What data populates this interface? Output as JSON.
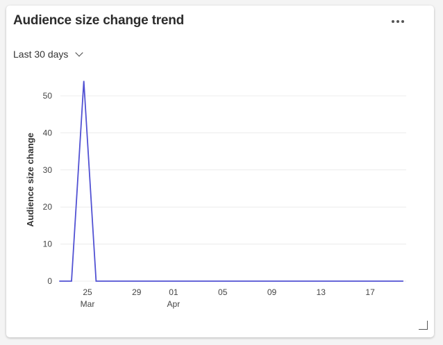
{
  "widget": {
    "title": "Audience size change trend",
    "menu_icon": "more-horizontal-icon",
    "date_range": "Last 30 days",
    "resize_icon": "resize-handle-icon"
  },
  "chart_data": {
    "type": "line",
    "title": "",
    "xlabel": "",
    "ylabel": "Audience size change",
    "ylim": [
      0,
      50
    ],
    "yticks": [
      0,
      10,
      20,
      30,
      40,
      50
    ],
    "grid": true,
    "color": "#5151d3",
    "xticks": [
      {
        "day": "25",
        "month": "Mar",
        "date": "2024-03-25"
      },
      {
        "day": "29",
        "month": "",
        "date": "2024-03-29"
      },
      {
        "day": "01",
        "month": "Apr",
        "date": "2024-04-01"
      },
      {
        "day": "05",
        "month": "",
        "date": "2024-04-05"
      },
      {
        "day": "09",
        "month": "",
        "date": "2024-04-09"
      },
      {
        "day": "13",
        "month": "",
        "date": "2024-04-13"
      },
      {
        "day": "17",
        "month": "",
        "date": "2024-04-17"
      }
    ],
    "series": [
      {
        "x": [
          "03-23",
          "03-24",
          "03-25",
          "03-26",
          "03-27",
          "03-28",
          "03-29",
          "03-30",
          "03-31",
          "04-01",
          "04-02",
          "04-03",
          "04-04",
          "04-05",
          "04-06",
          "04-07",
          "04-08",
          "04-09",
          "04-10",
          "04-11",
          "04-12",
          "04-13",
          "04-14",
          "04-15",
          "04-16",
          "04-17",
          "04-18",
          "04-19",
          "04-20"
        ],
        "values": [
          0,
          0,
          54,
          0,
          0,
          0,
          0,
          0,
          0,
          0,
          0,
          0,
          0,
          0,
          0,
          0,
          0,
          0,
          0,
          0,
          0,
          0,
          0,
          0,
          0,
          0,
          0,
          0,
          0
        ]
      }
    ]
  }
}
